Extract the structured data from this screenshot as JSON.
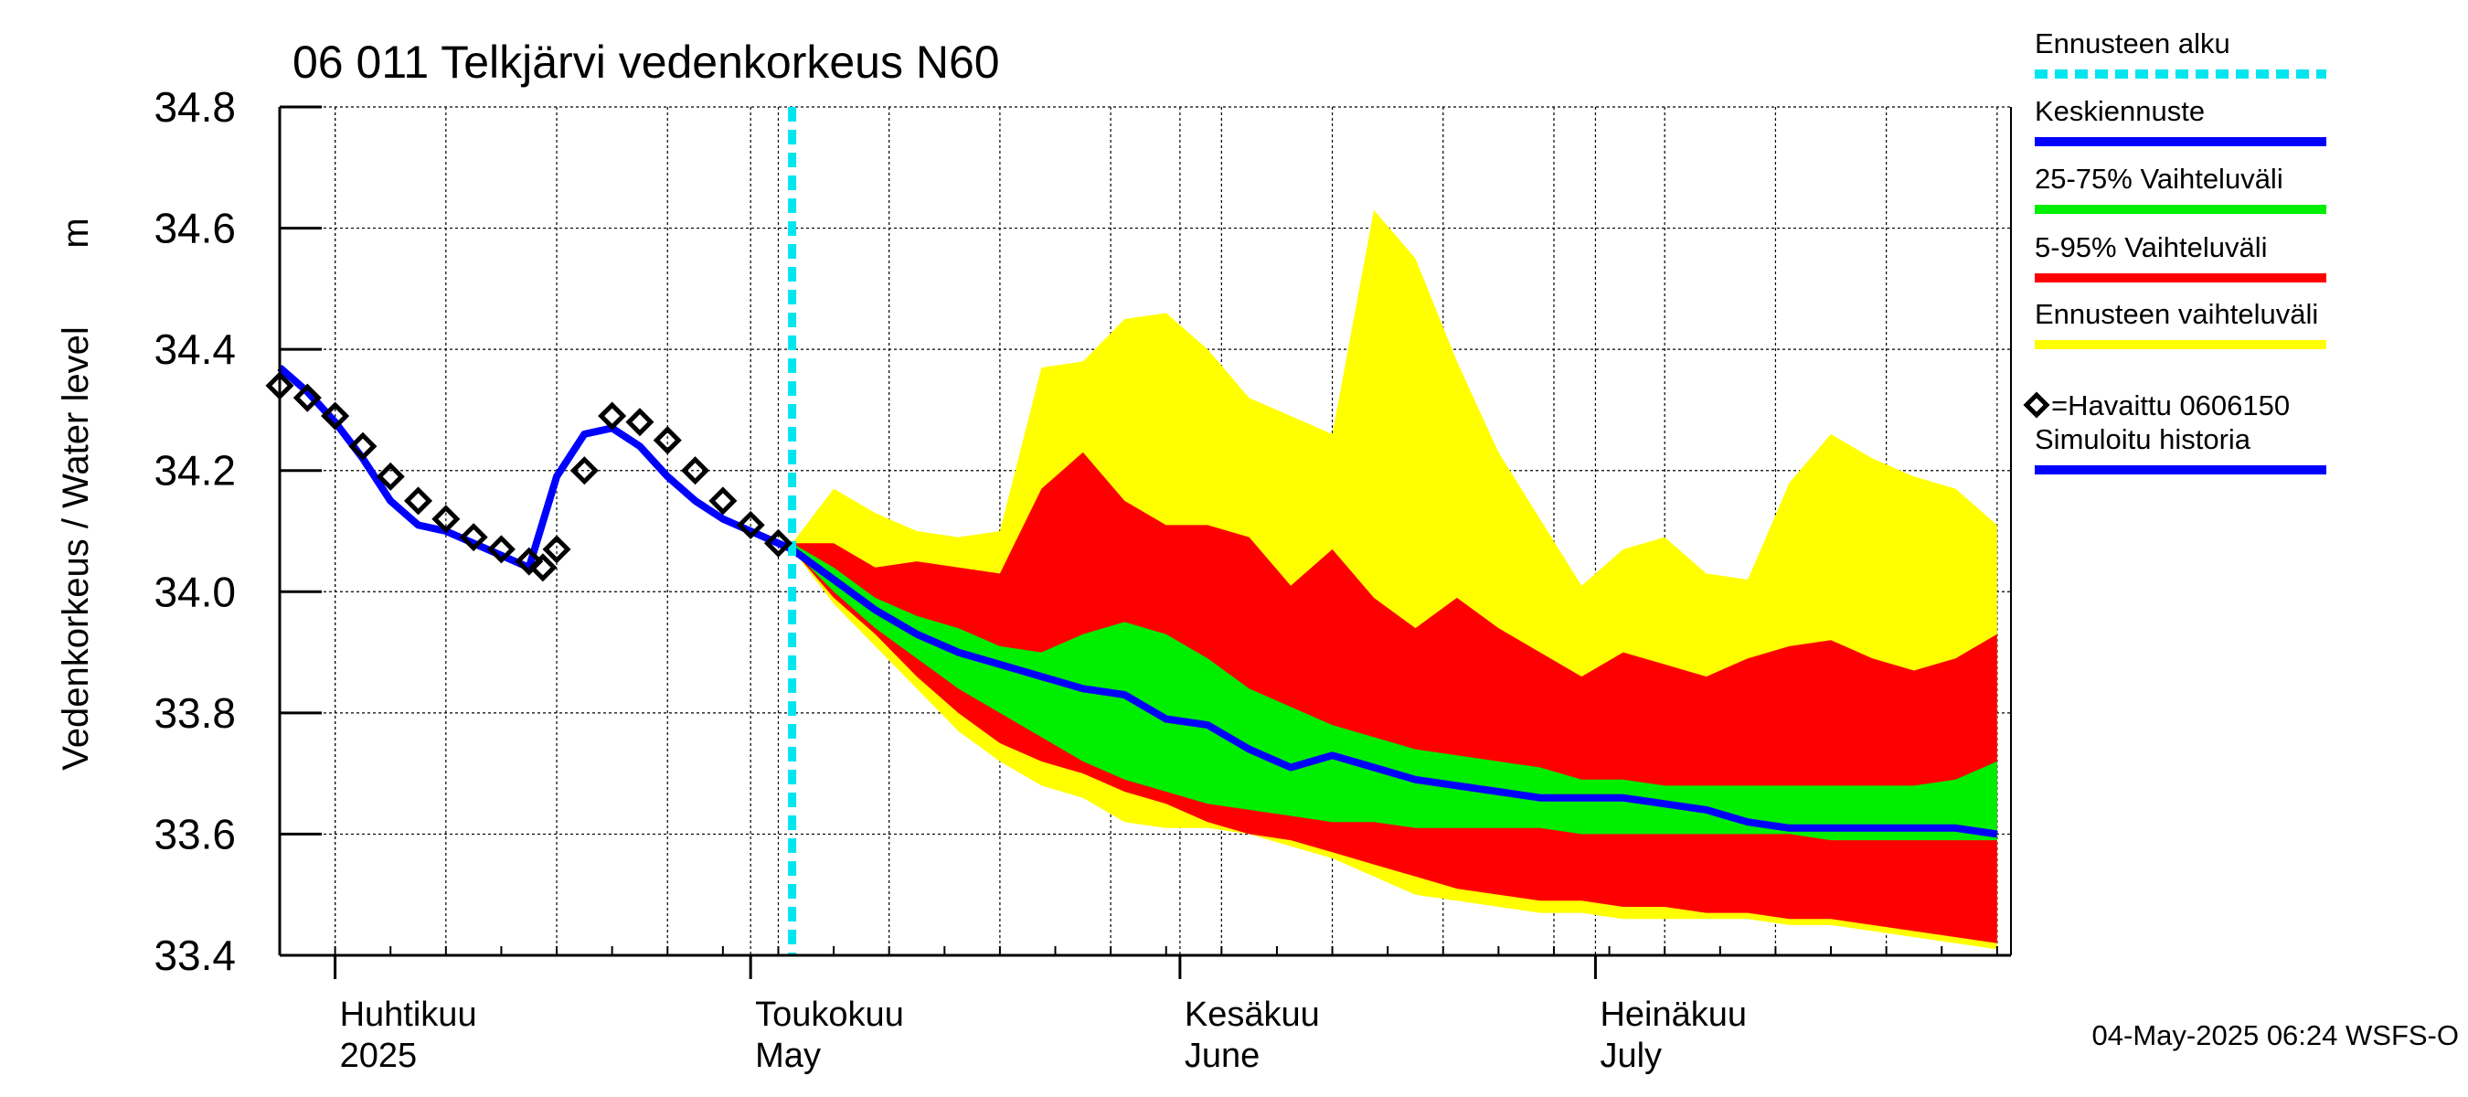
{
  "chart_data": {
    "type": "area",
    "title": "06 011 Telkjärvi vedenkorkeus N60",
    "ylabel": "Vedenkorkeus / Water level",
    "yunit": "m",
    "ylim": [
      33.4,
      34.8
    ],
    "yticks": [
      "33.4",
      "33.6",
      "33.8",
      "34.0",
      "34.2",
      "34.4",
      "34.6",
      "34.8"
    ],
    "xlim": [
      "2025-03-28",
      "2025-07-31"
    ],
    "grid": true,
    "forecast_start": "2025-05-04",
    "month_labels": [
      {
        "date": "2025-04-01",
        "line1": "Huhtikuu",
        "line2": "2025"
      },
      {
        "date": "2025-05-01",
        "line1": "Toukokuu",
        "line2": "May"
      },
      {
        "date": "2025-06-01",
        "line1": "Kesäkuu",
        "line2": "June"
      },
      {
        "date": "2025-07-01",
        "line1": "Heinäkuu",
        "line2": "July"
      }
    ],
    "band_dates": [
      "2025-05-04",
      "2025-05-07",
      "2025-05-10",
      "2025-05-13",
      "2025-05-16",
      "2025-05-19",
      "2025-05-22",
      "2025-05-25",
      "2025-05-28",
      "2025-05-31",
      "2025-06-03",
      "2025-06-06",
      "2025-06-09",
      "2025-06-12",
      "2025-06-15",
      "2025-06-18",
      "2025-06-21",
      "2025-06-24",
      "2025-06-27",
      "2025-06-30",
      "2025-07-03",
      "2025-07-06",
      "2025-07-09",
      "2025-07-12",
      "2025-07-15",
      "2025-07-18",
      "2025-07-21",
      "2025-07-24",
      "2025-07-27",
      "2025-07-30"
    ],
    "series": [
      {
        "name": "Ennusteen vaihteluväli",
        "color": "#ffff00",
        "upper": [
          34.08,
          34.17,
          34.13,
          34.1,
          34.09,
          34.1,
          34.37,
          34.38,
          34.45,
          34.46,
          34.4,
          34.32,
          34.29,
          34.26,
          34.63,
          34.55,
          34.38,
          34.23,
          34.12,
          34.01,
          34.07,
          34.09,
          34.03,
          34.02,
          34.18,
          34.26,
          34.22,
          34.19,
          34.17,
          34.11
        ],
        "lower": [
          34.07,
          33.98,
          33.91,
          33.84,
          33.77,
          33.72,
          33.68,
          33.66,
          33.62,
          33.61,
          33.61,
          33.6,
          33.58,
          33.56,
          33.53,
          33.5,
          33.49,
          33.48,
          33.47,
          33.47,
          33.46,
          33.46,
          33.46,
          33.46,
          33.45,
          33.45,
          33.44,
          33.43,
          33.42,
          33.41
        ]
      },
      {
        "name": "5-95% Vaihteluväli",
        "color": "#ff0000",
        "upper": [
          34.08,
          34.08,
          34.04,
          34.05,
          34.04,
          34.03,
          34.17,
          34.23,
          34.15,
          34.11,
          34.11,
          34.09,
          34.01,
          34.07,
          33.99,
          33.94,
          33.99,
          33.94,
          33.9,
          33.86,
          33.9,
          33.88,
          33.86,
          33.89,
          33.91,
          33.92,
          33.89,
          33.87,
          33.89,
          33.93
        ],
        "lower": [
          34.07,
          33.99,
          33.93,
          33.86,
          33.8,
          33.75,
          33.72,
          33.7,
          33.67,
          33.65,
          33.62,
          33.6,
          33.59,
          33.57,
          33.55,
          33.53,
          33.51,
          33.5,
          33.49,
          33.49,
          33.48,
          33.48,
          33.47,
          33.47,
          33.46,
          33.46,
          33.45,
          33.44,
          33.43,
          33.42
        ]
      },
      {
        "name": "25-75% Vaihteluväli",
        "color": "#00ee00",
        "upper": [
          34.08,
          34.04,
          33.99,
          33.96,
          33.94,
          33.91,
          33.9,
          33.93,
          33.95,
          33.93,
          33.89,
          33.84,
          33.81,
          33.78,
          33.76,
          33.74,
          33.73,
          33.72,
          33.71,
          33.69,
          33.69,
          33.68,
          33.68,
          33.68,
          33.68,
          33.68,
          33.68,
          33.68,
          33.69,
          33.72
        ],
        "lower": [
          34.07,
          34.0,
          33.94,
          33.89,
          33.84,
          33.8,
          33.76,
          33.72,
          33.69,
          33.67,
          33.65,
          33.64,
          33.63,
          33.62,
          33.62,
          33.61,
          33.61,
          33.61,
          33.61,
          33.6,
          33.6,
          33.6,
          33.6,
          33.6,
          33.6,
          33.59,
          33.59,
          33.59,
          33.59,
          33.59
        ]
      },
      {
        "name": "Keskiennuste",
        "color": "#0000ff",
        "values": [
          34.07,
          34.02,
          33.97,
          33.93,
          33.9,
          33.88,
          33.86,
          33.84,
          33.83,
          33.79,
          33.78,
          33.74,
          33.71,
          33.73,
          33.71,
          33.69,
          33.68,
          33.67,
          33.66,
          33.66,
          33.66,
          33.65,
          33.64,
          33.62,
          33.61,
          33.61,
          33.61,
          33.61,
          33.61,
          33.6
        ]
      },
      {
        "name": "Simuloitu historia",
        "color": "#0000ff",
        "dates": [
          "2025-03-28",
          "2025-03-30",
          "2025-04-01",
          "2025-04-03",
          "2025-04-05",
          "2025-04-07",
          "2025-04-09",
          "2025-04-11",
          "2025-04-13",
          "2025-04-15",
          "2025-04-17",
          "2025-04-19",
          "2025-04-21",
          "2025-04-23",
          "2025-04-25",
          "2025-04-27",
          "2025-04-29",
          "2025-05-01",
          "2025-05-03",
          "2025-05-04"
        ],
        "values": [
          34.37,
          34.33,
          34.28,
          34.22,
          34.15,
          34.11,
          34.1,
          34.08,
          34.06,
          34.04,
          34.19,
          34.26,
          34.27,
          34.24,
          34.19,
          34.15,
          34.12,
          34.1,
          34.08,
          34.07
        ]
      },
      {
        "name": "=Havaittu 0606150",
        "color": "#000000",
        "marker": "diamond",
        "dates": [
          "2025-03-28",
          "2025-03-30",
          "2025-04-01",
          "2025-04-03",
          "2025-04-05",
          "2025-04-07",
          "2025-04-09",
          "2025-04-11",
          "2025-04-13",
          "2025-04-15",
          "2025-04-16",
          "2025-04-17",
          "2025-04-19",
          "2025-04-21",
          "2025-04-23",
          "2025-04-25",
          "2025-04-27",
          "2025-04-29",
          "2025-05-01",
          "2025-05-03"
        ],
        "values": [
          34.34,
          34.32,
          34.29,
          34.24,
          34.19,
          34.15,
          34.12,
          34.09,
          34.07,
          34.05,
          34.04,
          34.07,
          34.2,
          34.29,
          34.28,
          34.25,
          34.2,
          34.15,
          34.11,
          34.08
        ]
      }
    ],
    "legend_position": "right",
    "legend": [
      {
        "label": "Ennusteen alku",
        "color": "#00e5ee",
        "style": "dashed"
      },
      {
        "label": "Keskiennuste",
        "color": "#0000ff",
        "style": "line"
      },
      {
        "label": "25-75% Vaihteluväli",
        "color": "#00ee00",
        "style": "line"
      },
      {
        "label": "5-95% Vaihteluväli",
        "color": "#ff0000",
        "style": "line"
      },
      {
        "label": "Ennusteen vaihteluväli",
        "color": "#ffff00",
        "style": "line"
      },
      {
        "label": "=Havaittu 0606150",
        "color": "#000000",
        "style": "diamond"
      },
      {
        "label": "Simuloitu historia",
        "color": "#0000ff",
        "style": "line"
      }
    ],
    "timestamp": "04-May-2025 06:24 WSFS-O"
  }
}
